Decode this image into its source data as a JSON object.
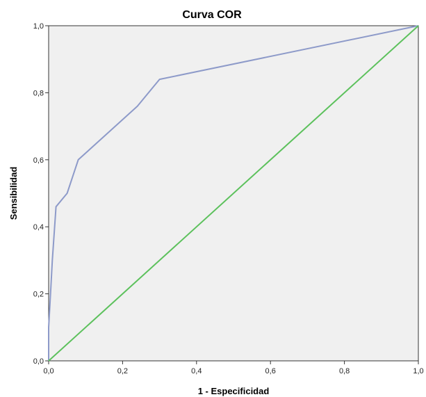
{
  "chart_data": {
    "type": "line",
    "title": "Curva COR",
    "xlabel": "1 - Especificidad",
    "ylabel": "Sensibilidad",
    "xlim": [
      0,
      1
    ],
    "ylim": [
      0,
      1
    ],
    "x_ticks": [
      "0,0",
      "0,2",
      "0,4",
      "0,6",
      "0,8",
      "1,0"
    ],
    "y_ticks": [
      "0,0",
      "0,2",
      "0,4",
      "0,6",
      "0,8",
      "1,0"
    ],
    "grid": false,
    "background_color": "#f0f0f0",
    "series": [
      {
        "color": "#8d9ac9",
        "points": [
          [
            0.0,
            0.0
          ],
          [
            0.0,
            0.1
          ],
          [
            0.005,
            0.2
          ],
          [
            0.01,
            0.3
          ],
          [
            0.02,
            0.46
          ],
          [
            0.05,
            0.5
          ],
          [
            0.08,
            0.6
          ],
          [
            0.24,
            0.76
          ],
          [
            0.3,
            0.84
          ],
          [
            1.0,
            1.0
          ]
        ]
      },
      {
        "color": "#5cc15c",
        "points": [
          [
            0.0,
            0.0
          ],
          [
            1.0,
            1.0
          ]
        ]
      }
    ]
  }
}
